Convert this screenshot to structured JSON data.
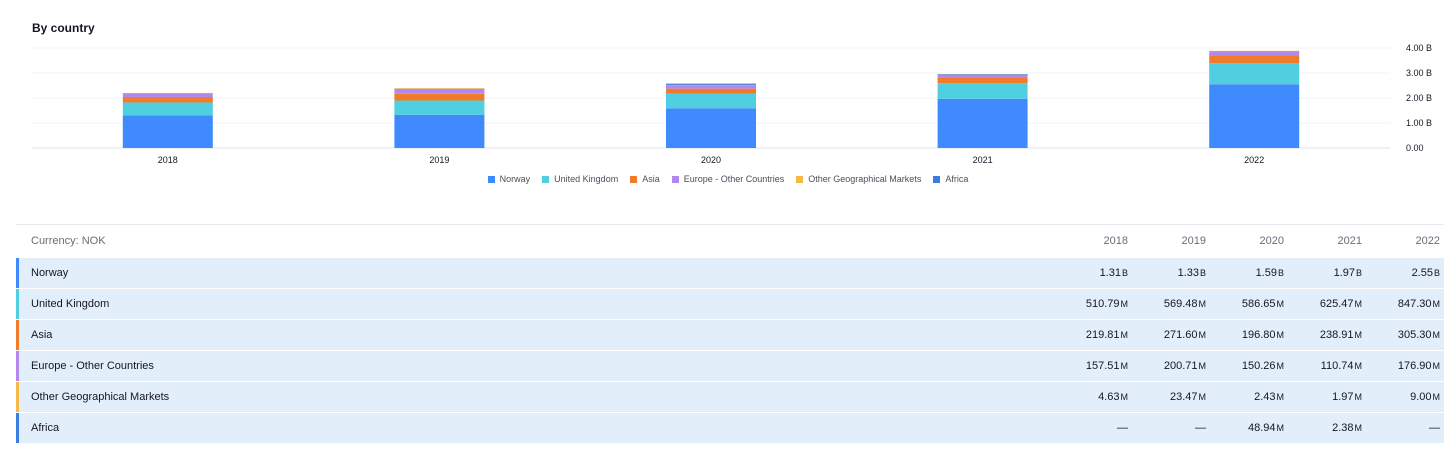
{
  "title": "By country",
  "chart_data": {
    "type": "bar",
    "stacked": true,
    "categories": [
      "2018",
      "2019",
      "2020",
      "2021",
      "2022"
    ],
    "series": [
      {
        "name": "Norway",
        "color": "#3f8bfd",
        "values": [
          1310000000,
          1330000000,
          1590000000,
          1970000000,
          2550000000
        ]
      },
      {
        "name": "United Kingdom",
        "color": "#4fcfdf",
        "values": [
          510790000,
          569480000,
          586650000,
          625470000,
          847300000
        ]
      },
      {
        "name": "Asia",
        "color": "#f07b2a",
        "values": [
          219810000,
          271600000,
          196800000,
          238910000,
          305300000
        ]
      },
      {
        "name": "Europe - Other Countries",
        "color": "#b388ec",
        "values": [
          157510000,
          200710000,
          150260000,
          110740000,
          176900000
        ]
      },
      {
        "name": "Other Geographical Markets",
        "color": "#f7b84a",
        "values": [
          4630000,
          23470000,
          2430000,
          1970000,
          9000000
        ]
      },
      {
        "name": "Africa",
        "color": "#3a7de0",
        "values": [
          0,
          0,
          48940000,
          2380000,
          0
        ]
      }
    ],
    "y_ticks": [
      "0.00",
      "1.00 B",
      "2.00 B",
      "3.00 B",
      "4.00 B"
    ],
    "ylim": [
      0,
      4000000000
    ],
    "grid": true,
    "legend": "bottom-center"
  },
  "table": {
    "currency_label": "Currency: NOK",
    "years": [
      "2018",
      "2019",
      "2020",
      "2021",
      "2022"
    ],
    "rows": [
      {
        "label": "Norway",
        "color": "#3f8bfd",
        "values": [
          [
            "1.31",
            "B"
          ],
          [
            "1.33",
            "B"
          ],
          [
            "1.59",
            "B"
          ],
          [
            "1.97",
            "B"
          ],
          [
            "2.55",
            "B"
          ]
        ]
      },
      {
        "label": "United Kingdom",
        "color": "#4fcfdf",
        "values": [
          [
            "510.79",
            "M"
          ],
          [
            "569.48",
            "M"
          ],
          [
            "586.65",
            "M"
          ],
          [
            "625.47",
            "M"
          ],
          [
            "847.30",
            "M"
          ]
        ]
      },
      {
        "label": "Asia",
        "color": "#f07b2a",
        "values": [
          [
            "219.81",
            "M"
          ],
          [
            "271.60",
            "M"
          ],
          [
            "196.80",
            "M"
          ],
          [
            "238.91",
            "M"
          ],
          [
            "305.30",
            "M"
          ]
        ]
      },
      {
        "label": "Europe - Other Countries",
        "color": "#b388ec",
        "values": [
          [
            "157.51",
            "M"
          ],
          [
            "200.71",
            "M"
          ],
          [
            "150.26",
            "M"
          ],
          [
            "110.74",
            "M"
          ],
          [
            "176.90",
            "M"
          ]
        ]
      },
      {
        "label": "Other Geographical Markets",
        "color": "#f7b84a",
        "values": [
          [
            "4.63",
            "M"
          ],
          [
            "23.47",
            "M"
          ],
          [
            "2.43",
            "M"
          ],
          [
            "1.97",
            "M"
          ],
          [
            "9.00",
            "M"
          ]
        ]
      },
      {
        "label": "Africa",
        "color": "#3a7de0",
        "values": [
          [
            "—",
            ""
          ],
          [
            "—",
            ""
          ],
          [
            "48.94",
            "M"
          ],
          [
            "2.38",
            "M"
          ],
          [
            "—",
            ""
          ]
        ]
      }
    ]
  }
}
